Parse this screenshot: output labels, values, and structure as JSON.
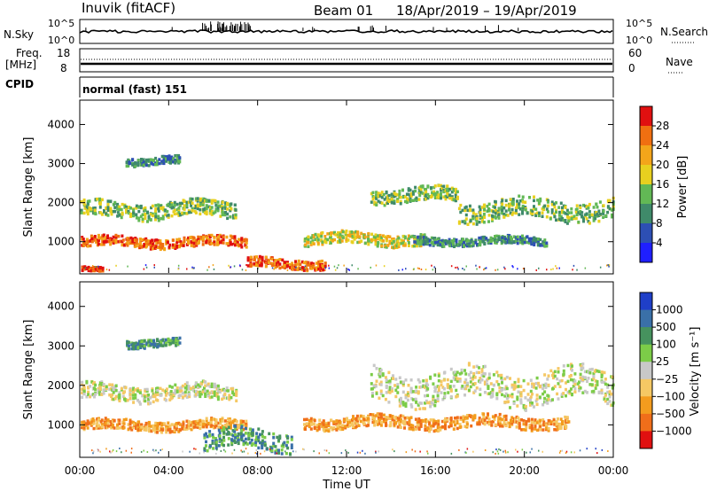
{
  "header": {
    "station": "Inuvik (fitACF)",
    "beam": "Beam 01",
    "date_range": "18/Apr/2019 – 19/Apr/2019"
  },
  "top_panels": {
    "nsky_label": "N.Sky",
    "nsky_ticks": [
      "10^5",
      "10^0"
    ],
    "nsearch_label": "N.Search",
    "nsearch_ticks": [
      "10^5",
      "10^0"
    ],
    "freq_label": "Freq.",
    "freq_unit": "[MHz]",
    "freq_ticks": [
      "18",
      "8"
    ],
    "nave_label": "Nave",
    "nave_ticks": [
      "60",
      "0"
    ],
    "cpid_label": "CPID",
    "cpid_text": "normal (fast) 151"
  },
  "chart_data": [
    {
      "type": "heatmap",
      "name": "power",
      "ylabel": "Slant Range [km]",
      "ylim": [
        200,
        4600
      ],
      "yticks": [
        "1000",
        "2000",
        "3000",
        "4000"
      ],
      "colorbar_label": "Power [dB]",
      "colorbar_ticks": [
        "4",
        "8",
        "12",
        "16",
        "20",
        "24",
        "28"
      ],
      "colors": [
        "#1f1fff",
        "#2d4fb4",
        "#3f8a6a",
        "#62b855",
        "#e8d01f",
        "#f3a51a",
        "#f06f11",
        "#e01010"
      ],
      "features": [
        {
          "t": [
            0.0,
            7.5
          ],
          "range": [
            900,
            1150
          ],
          "level": 6
        },
        {
          "t": [
            0.0,
            7.0
          ],
          "range": [
            1650,
            2050
          ],
          "level": 3
        },
        {
          "t": [
            2.0,
            4.5
          ],
          "range": [
            3000,
            3200
          ],
          "level": 2
        },
        {
          "t": [
            0.0,
            1.0
          ],
          "range": [
            300,
            400
          ],
          "level": 7
        },
        {
          "t": [
            7.5,
            11.0
          ],
          "range": [
            350,
            600
          ],
          "level": 6
        },
        {
          "t": [
            10.0,
            15.5
          ],
          "range": [
            950,
            1250
          ],
          "level": 4
        },
        {
          "t": [
            13.0,
            17.0
          ],
          "range": [
            2050,
            2400
          ],
          "level": 3
        },
        {
          "t": [
            17.0,
            24.0
          ],
          "range": [
            1600,
            2100
          ],
          "level": 3
        },
        {
          "t": [
            15.0,
            21.0
          ],
          "range": [
            950,
            1150
          ],
          "level": 2
        }
      ]
    },
    {
      "type": "heatmap",
      "name": "velocity",
      "xlabel": "Time UT",
      "ylabel": "Slant Range [km]",
      "ylim": [
        200,
        4600
      ],
      "xlim": [
        0,
        24
      ],
      "xticks": [
        "00:00",
        "04:00",
        "08:00",
        "12:00",
        "16:00",
        "20:00",
        "00:00"
      ],
      "yticks": [
        "1000",
        "2000",
        "3000",
        "4000"
      ],
      "colorbar_label": "Velocity [m s⁻¹]",
      "colorbar_ticks": [
        "1000",
        "500",
        "100",
        "25",
        "−25",
        "−100",
        "−500",
        "−1000"
      ],
      "colors": [
        "#1f3fc8",
        "#3a70a8",
        "#46925e",
        "#7ccc48",
        "#c8c8c8",
        "#f5c864",
        "#f39c1e",
        "#f06e1a",
        "#e01010"
      ],
      "features": [
        {
          "t": [
            0.0,
            7.5
          ],
          "range": [
            900,
            1150
          ],
          "level": 6
        },
        {
          "t": [
            0.0,
            7.0
          ],
          "range": [
            1650,
            2050
          ],
          "level": 4
        },
        {
          "t": [
            2.0,
            4.5
          ],
          "range": [
            3000,
            3200
          ],
          "level": 2
        },
        {
          "t": [
            10.0,
            22.0
          ],
          "range": [
            950,
            1250
          ],
          "level": 6
        },
        {
          "t": [
            13.0,
            24.0
          ],
          "range": [
            1600,
            2400
          ],
          "level": 4
        },
        {
          "t": [
            5.5,
            9.5
          ],
          "range": [
            400,
            900
          ],
          "level": 2
        }
      ]
    }
  ]
}
